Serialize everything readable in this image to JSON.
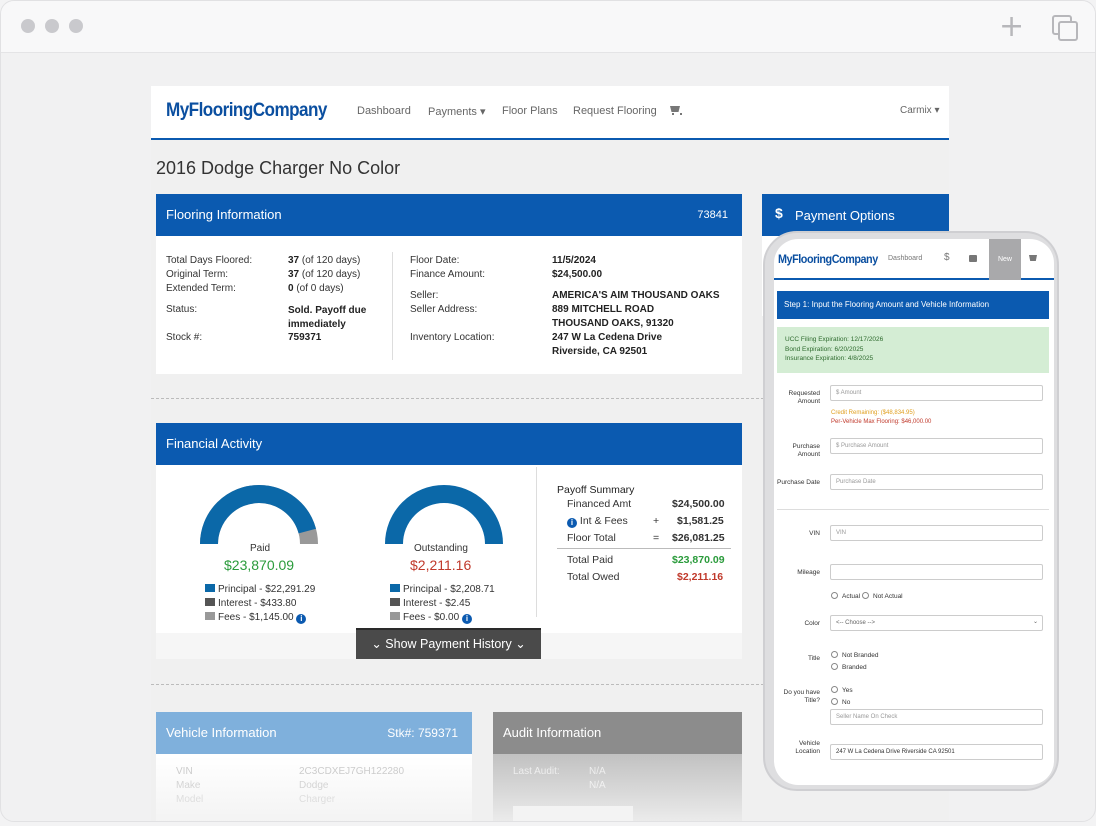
{
  "site": {
    "logo": "MyFlooringCompany",
    "nav": [
      "Dashboard",
      "Payments ▾",
      "Floor Plans",
      "Request Flooring"
    ],
    "user": "Carmix ▾"
  },
  "page_title": "2016 Dodge Charger No Color",
  "flooring": {
    "header": "Flooring Information",
    "id": "73841",
    "left_labels": [
      "Total Days Floored:",
      "Original Term:",
      "Extended Term:",
      "Status:",
      "Stock #:"
    ],
    "left_values_b": [
      "37",
      "37",
      "0"
    ],
    "left_values_t": [
      " (of 120 days)",
      " (of 120 days)",
      " (of 0 days)"
    ],
    "status": "Sold. Payoff due immediately",
    "stock": "759371",
    "right_labels": [
      "Floor Date:",
      "Finance Amount:",
      "Seller:",
      "Seller Address:",
      "Inventory Location:"
    ],
    "floor_date": "11/5/2024",
    "finance_amount": "$24,500.00",
    "seller": "AMERICA'S AIM THOUSAND OAKS",
    "seller_addr1": "889 MITCHELL ROAD",
    "seller_addr2": "THOUSAND OAKS, 91320",
    "inv_loc1": "247 W La Cedena Drive",
    "inv_loc2": "Riverside, CA 92501"
  },
  "financial": {
    "header": "Financial Activity",
    "paid": {
      "label": "Paid",
      "value": "$23,870.09",
      "fraction": 0.915
    },
    "outstanding": {
      "label": "Outstanding",
      "value": "$2,211.16",
      "fraction": 0.085
    },
    "paid_legend": [
      "Principal - $22,291.29",
      "Interest - $433.80",
      "Fees - $1,145.00"
    ],
    "out_legend": [
      "Principal - $2,208.71",
      "Interest - $2.45",
      "Fees - $0.00"
    ],
    "payoff": {
      "title": "Payoff Summary",
      "rows": [
        {
          "label": "Financed Amt",
          "op": "",
          "value": "$24,500.00"
        },
        {
          "label": "Int & Fees",
          "op": "+",
          "value": "$1,581.25"
        },
        {
          "label": "Floor Total",
          "op": "=",
          "value": "$26,081.25"
        }
      ],
      "total_paid_label": "Total Paid",
      "total_paid": "$23,870.09",
      "total_owed_label": "Total Owed",
      "total_owed": "$2,211.16"
    },
    "history_button": "Show Payment History"
  },
  "vehicle": {
    "header": "Vehicle Information",
    "stock": "Stk#: 759371",
    "labels": [
      "VIN",
      "Make",
      "Model"
    ],
    "values": [
      "2C3CDXEJ7GH122280",
      "Dodge",
      "Charger"
    ]
  },
  "audit": {
    "header": "Audit Information",
    "label": "Last Audit:",
    "v1": "N/A",
    "v2": "N/A"
  },
  "payment_options": {
    "icon": "$",
    "label": "Payment Options"
  },
  "phone": {
    "logo": "MyFlooringCompany",
    "nav_dashboard": "Dashboard",
    "nav_dollar": "$",
    "nav_new": "New",
    "step": "Step 1: Input the Flooring Amount and Vehicle Information",
    "ucc": "UCC Filing Expiration: 12/17/2026",
    "bond": "Bond Expiration: 6/20/2025",
    "insurance": "Insurance Expiration: 4/8/2025",
    "requested_label": "Requested Amount",
    "requested_ph": "$ Amount",
    "credit": "Credit Remaining: ($48,834.95)",
    "max": "Per-Vehicle Max Flooring: $46,000.00",
    "purchase_amt_label": "Purchase Amount",
    "purchase_amt_ph": "$ Purchase Amount",
    "purchase_date_label": "Purchase Date",
    "purchase_date_ph": "Purchase Date",
    "vin_label": "VIN",
    "vin_ph": "VIN",
    "mileage_label": "Mileage",
    "actual": "Actual",
    "not_actual": "Not Actual",
    "color_label": "Color",
    "color_value": "<-- Choose -->",
    "title_label": "Title",
    "not_branded": "Not Branded",
    "branded": "Branded",
    "have_title_label": "Do you have Title?",
    "yes": "Yes",
    "no": "No",
    "seller_ph": "Seller Name On Check",
    "veh_loc_label": "Vehicle Location",
    "veh_loc_value": "247 W La Cedena Drive Riverside CA 92501"
  },
  "colors": {
    "brand": "#0b5ab0",
    "paid": "#2a9b3b",
    "owed": "#c0392b",
    "principal": "#0b5ab0",
    "interest": "#555555",
    "fees": "#999999"
  }
}
